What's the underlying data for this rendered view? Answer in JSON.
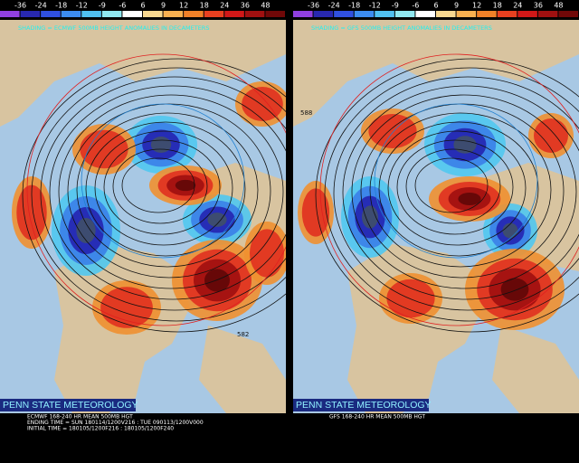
{
  "colorbar": {
    "levels": [
      -36,
      -24,
      -18,
      -12,
      -9,
      -6,
      6,
      9,
      12,
      18,
      24,
      36,
      48
    ],
    "colors": [
      "#9040e0",
      "#2828b0",
      "#3050e0",
      "#3c8cf0",
      "#50c0f0",
      "#90e8f0",
      "#ffffff",
      "#f8d890",
      "#f8b050",
      "#f08028",
      "#e84020",
      "#d01818",
      "#a01010",
      "#700808"
    ]
  },
  "panels": [
    {
      "shading_title": "SHADING = ECMWF 500MB HEIGHT ANOMALIES IN DECAMETERS",
      "banner": "PENN STATE METEOROLOGY",
      "caption": [
        "ECMWF 168-240 HR MEAN 500MB HGT",
        "ENDING TIME = SUN 180114/1200V216 : TUE 090113/1200V000",
        "INITIAL TIME = 180105/1200F216 : 180105/1200F240"
      ],
      "contour_label": "582"
    },
    {
      "shading_title": "SHADING = GFS 500MB HEIGHT ANOMALIES IN DECAMETERS",
      "banner": "PENN STATE METEOROLOGY",
      "caption": [
        "GFS 168-240 HR MEAN 500MB HGT"
      ],
      "contour_label": "588"
    }
  ]
}
